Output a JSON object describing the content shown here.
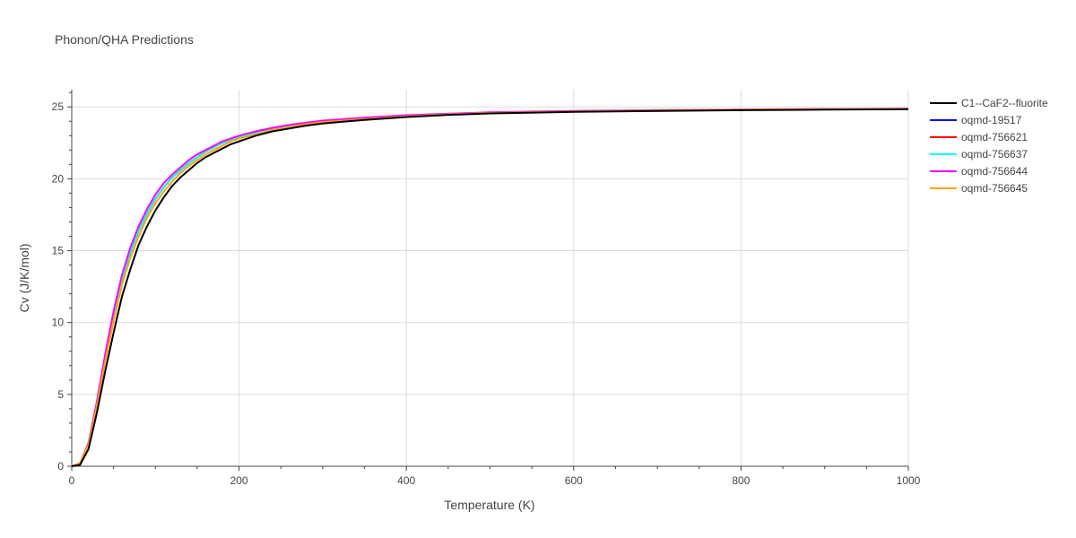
{
  "chart_data": {
    "type": "line",
    "title": "Phonon/QHA Predictions",
    "xlabel": "Temperature (K)",
    "ylabel": "Cv (J/K/mol)",
    "xlim": [
      0,
      1000
    ],
    "ylim": [
      0,
      26.2
    ],
    "x_ticks": [
      0,
      200,
      400,
      600,
      800,
      1000
    ],
    "y_ticks": [
      0,
      5,
      10,
      15,
      20,
      25
    ],
    "grid": true,
    "legend_position": "right",
    "x": [
      0,
      10,
      20,
      30,
      40,
      50,
      60,
      70,
      80,
      90,
      100,
      110,
      120,
      130,
      140,
      150,
      160,
      170,
      180,
      190,
      200,
      220,
      240,
      260,
      280,
      300,
      350,
      400,
      450,
      500,
      600,
      700,
      800,
      900,
      1000
    ],
    "series": [
      {
        "name": "C1--CaF2--fluorite",
        "color": "#000000",
        "values": [
          0,
          0.1,
          1.2,
          3.7,
          6.6,
          9.3,
          11.8,
          13.7,
          15.4,
          16.7,
          17.8,
          18.7,
          19.5,
          20.1,
          20.6,
          21.1,
          21.5,
          21.8,
          22.1,
          22.4,
          22.6,
          23.0,
          23.3,
          23.5,
          23.7,
          23.85,
          24.1,
          24.3,
          24.45,
          24.55,
          24.65,
          24.72,
          24.77,
          24.81,
          24.84
        ]
      },
      {
        "name": "oqmd-19517",
        "color": "#0000ff",
        "values": [
          0,
          0.2,
          1.6,
          4.4,
          7.6,
          10.5,
          13.0,
          14.9,
          16.4,
          17.6,
          18.6,
          19.4,
          20.1,
          20.6,
          21.1,
          21.5,
          21.9,
          22.2,
          22.5,
          22.7,
          22.9,
          23.2,
          23.5,
          23.7,
          23.85,
          24.0,
          24.2,
          24.4,
          24.5,
          24.6,
          24.7,
          24.76,
          24.8,
          24.83,
          24.86
        ]
      },
      {
        "name": "oqmd-756621",
        "color": "#ff0000",
        "values": [
          0,
          0.2,
          1.6,
          4.4,
          7.6,
          10.5,
          13.0,
          14.9,
          16.4,
          17.6,
          18.6,
          19.4,
          20.1,
          20.6,
          21.1,
          21.5,
          21.9,
          22.2,
          22.5,
          22.7,
          22.9,
          23.2,
          23.5,
          23.7,
          23.85,
          24.0,
          24.2,
          24.4,
          24.5,
          24.6,
          24.7,
          24.76,
          24.8,
          24.83,
          24.86
        ]
      },
      {
        "name": "oqmd-756637",
        "color": "#00ffff",
        "values": [
          0,
          0.2,
          1.6,
          4.4,
          7.6,
          10.5,
          13.0,
          14.9,
          16.4,
          17.6,
          18.6,
          19.4,
          20.1,
          20.6,
          21.1,
          21.5,
          21.9,
          22.2,
          22.5,
          22.7,
          22.9,
          23.2,
          23.5,
          23.7,
          23.85,
          24.0,
          24.2,
          24.4,
          24.5,
          24.6,
          24.7,
          24.76,
          24.8,
          24.83,
          24.86
        ]
      },
      {
        "name": "oqmd-756644",
        "color": "#ff00ff",
        "values": [
          0,
          0.2,
          1.6,
          4.5,
          7.8,
          10.8,
          13.3,
          15.2,
          16.7,
          17.9,
          18.9,
          19.7,
          20.3,
          20.8,
          21.3,
          21.7,
          22.0,
          22.3,
          22.6,
          22.8,
          23.0,
          23.3,
          23.55,
          23.75,
          23.9,
          24.05,
          24.25,
          24.42,
          24.52,
          24.62,
          24.72,
          24.78,
          24.82,
          24.85,
          24.87
        ]
      },
      {
        "name": "oqmd-756645",
        "color": "#ffa500",
        "values": [
          0,
          0.2,
          1.5,
          4.2,
          7.3,
          10.1,
          12.6,
          14.5,
          16.0,
          17.3,
          18.3,
          19.1,
          19.8,
          20.4,
          20.9,
          21.3,
          21.7,
          22.0,
          22.3,
          22.6,
          22.8,
          23.1,
          23.4,
          23.6,
          23.8,
          23.95,
          24.15,
          24.35,
          24.48,
          24.58,
          24.68,
          24.75,
          24.8,
          24.84,
          24.86
        ]
      }
    ]
  }
}
